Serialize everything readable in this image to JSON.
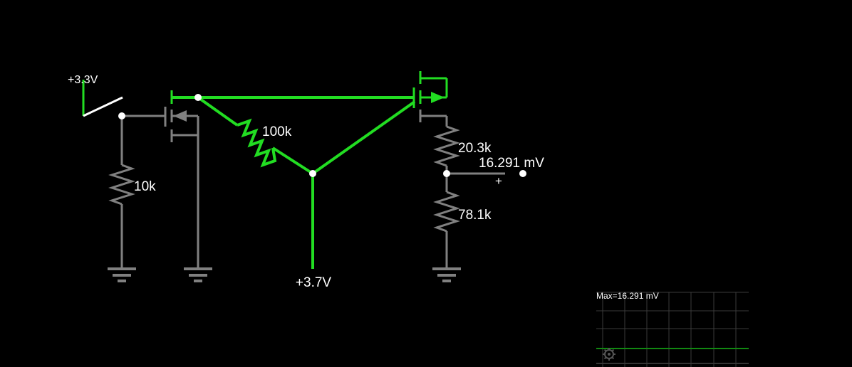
{
  "circuit": {
    "source_left_label": "+3.3V",
    "source_bottom_label": "+3.7V",
    "resistor_gate_label": "10k",
    "resistor_feedback_label": "100k",
    "resistor_divider_top_label": "20.3k",
    "resistor_divider_bottom_label": "78.1k",
    "probe_reading": "16.291 mV",
    "probe_polarity": "+"
  },
  "scope": {
    "max_label": "Max=16.291 mV",
    "settings_icon": "gear-icon"
  },
  "colors": {
    "background": "#000000",
    "active_wire": "#22dd22",
    "inactive_wire": "#808080",
    "switch": "#ffffff",
    "node": "#ffffff",
    "scope_grid": "#3a3a3a",
    "scope_trace": "#118811"
  }
}
